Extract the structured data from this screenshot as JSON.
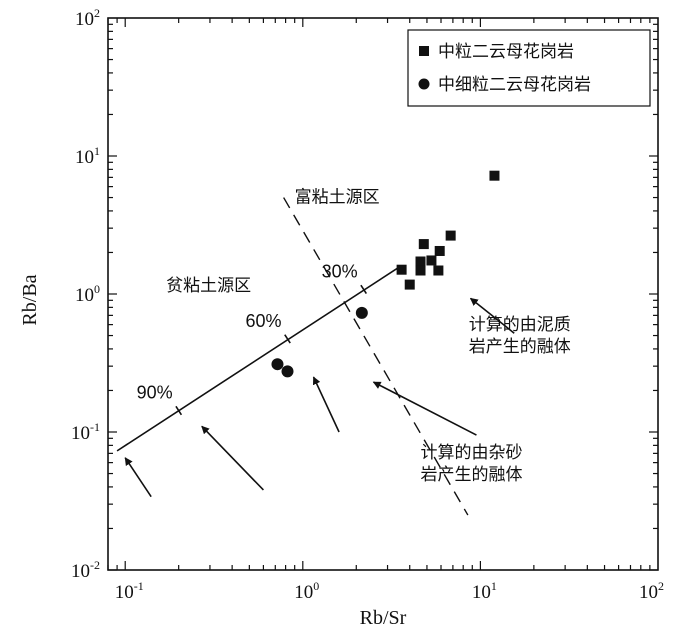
{
  "chart_data": {
    "type": "scatter",
    "xlabel": "Rb/Sr",
    "ylabel": "Rb/Ba",
    "x_scale": "log",
    "y_scale": "log",
    "xlim": [
      0.08,
      100
    ],
    "ylim": [
      0.01,
      100
    ],
    "x_ticks": [
      {
        "value": 0.1,
        "base": "10",
        "exp": "-1"
      },
      {
        "value": 1,
        "base": "10",
        "exp": "0"
      },
      {
        "value": 10,
        "base": "10",
        "exp": "1"
      },
      {
        "value": 100,
        "base": "10",
        "exp": "2"
      }
    ],
    "y_ticks": [
      {
        "value": 0.01,
        "base": "10",
        "exp": "-2"
      },
      {
        "value": 0.1,
        "base": "10",
        "exp": "-1"
      },
      {
        "value": 1,
        "base": "10",
        "exp": "0"
      },
      {
        "value": 10,
        "base": "10",
        "exp": "1"
      },
      {
        "value": 100,
        "base": "10",
        "exp": "2"
      }
    ],
    "legend": {
      "placement": "top-right",
      "entries": [
        {
          "label": "中粒二云母花岗岩",
          "marker": "square"
        },
        {
          "label": "中细粒二云母花岗岩",
          "marker": "circle"
        }
      ]
    },
    "series": [
      {
        "name": "中粒二云母花岗岩",
        "marker": "square",
        "points": [
          {
            "x": 12.0,
            "y": 7.2
          },
          {
            "x": 6.8,
            "y": 2.65
          },
          {
            "x": 4.8,
            "y": 2.3
          },
          {
            "x": 5.9,
            "y": 2.05
          },
          {
            "x": 5.3,
            "y": 1.75
          },
          {
            "x": 4.6,
            "y": 1.72
          },
          {
            "x": 3.6,
            "y": 1.5
          },
          {
            "x": 4.6,
            "y": 1.48
          },
          {
            "x": 5.8,
            "y": 1.48
          },
          {
            "x": 4.0,
            "y": 1.17
          }
        ]
      },
      {
        "name": "中细粒二云母花岗岩",
        "marker": "circle",
        "points": [
          {
            "x": 2.15,
            "y": 0.73
          },
          {
            "x": 0.72,
            "y": 0.31
          },
          {
            "x": 0.82,
            "y": 0.275
          }
        ]
      }
    ],
    "trend_line": {
      "points": [
        {
          "x": 0.09,
          "y": 0.073
        },
        {
          "x": 3.5,
          "y": 1.57
        }
      ],
      "ticks": [
        {
          "x": 0.2,
          "y": 0.143,
          "label": "90%"
        },
        {
          "x": 0.82,
          "y": 0.473,
          "label": "60%"
        },
        {
          "x": 2.2,
          "y": 1.08,
          "label": "30%"
        }
      ]
    },
    "divider_line": {
      "style": "dashed",
      "points": [
        {
          "x": 0.78,
          "y": 5.0
        },
        {
          "x": 8.5,
          "y": 0.025
        }
      ]
    },
    "region_labels": [
      {
        "text": "富粘土源区",
        "x": 0.9,
        "y": 4.6
      },
      {
        "text": "贫粘土源区",
        "x": 0.17,
        "y": 1.05
      }
    ],
    "annotations": [
      {
        "lines": [
          "计算的由泥质",
          "岩产生的融体"
        ],
        "x": 8.6,
        "y": 0.55
      },
      {
        "lines": [
          "计算的由杂砂",
          "岩产生的融体"
        ],
        "x": 4.6,
        "y": 0.065
      }
    ],
    "arrows": [
      {
        "from": {
          "x": 15.5,
          "y": 0.52
        },
        "to": {
          "x": 8.8,
          "y": 0.93
        }
      },
      {
        "from": {
          "x": 9.5,
          "y": 0.095
        },
        "to": {
          "x": 2.5,
          "y": 0.23
        }
      },
      {
        "from": {
          "x": 1.6,
          "y": 0.1
        },
        "to": {
          "x": 1.15,
          "y": 0.25
        }
      },
      {
        "from": {
          "x": 0.6,
          "y": 0.038
        },
        "to": {
          "x": 0.27,
          "y": 0.11
        }
      },
      {
        "from": {
          "x": 0.14,
          "y": 0.034
        },
        "to": {
          "x": 0.1,
          "y": 0.065
        }
      }
    ]
  }
}
